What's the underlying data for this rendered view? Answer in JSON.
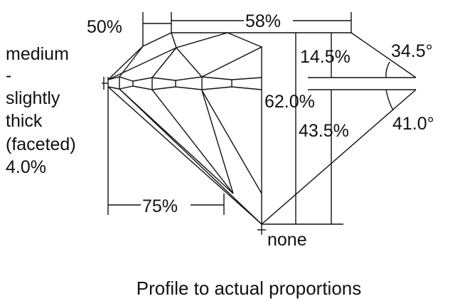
{
  "diagram": {
    "caption": "Profile to actual proportions",
    "girdle_label": [
      "medium",
      "-",
      "slightly",
      "thick",
      "(faceted)",
      "4.0%"
    ],
    "culet_label": "none",
    "table_percent": "58%",
    "star_length": "50%",
    "lower_girdle_length": "75%",
    "crown_height": "14.5%",
    "total_depth": "62.0%",
    "pavilion_depth": "43.5%",
    "crown_angle": "34.5°",
    "pavilion_angle": "41.0°",
    "line_color": "#111111",
    "background": "#ffffff"
  }
}
